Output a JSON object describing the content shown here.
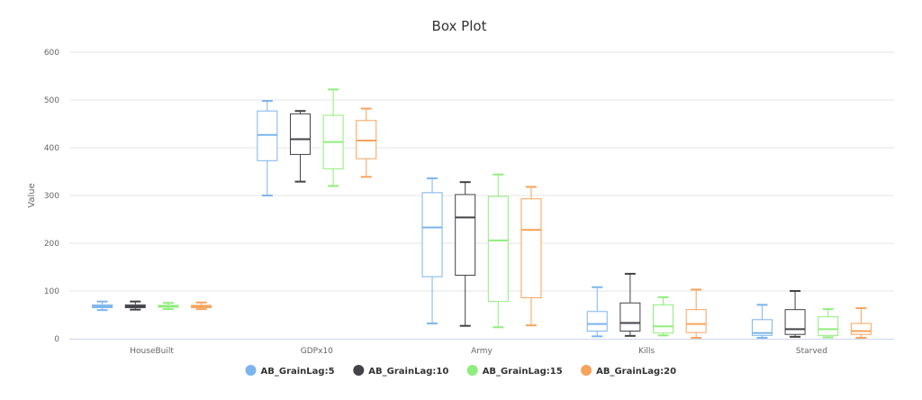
{
  "chart_data": {
    "type": "box",
    "title": "Box Plot",
    "ylabel": "Value",
    "xlabel": "",
    "ylim": [
      0,
      600
    ],
    "y_ticks": [
      0,
      100,
      200,
      300,
      400,
      500,
      600
    ],
    "grid": true,
    "legend_position": "bottom",
    "categories": [
      "HouseBuilt",
      "GDPx10",
      "Army",
      "Kills",
      "Starved"
    ],
    "series": [
      {
        "name": "AB_GrainLag:5",
        "color": "#7cb5ec",
        "boxes": [
          {
            "min": 60,
            "q1": 65,
            "median": 68,
            "q3": 71,
            "max": 78
          },
          {
            "min": 300,
            "q1": 373,
            "median": 427,
            "q3": 477,
            "max": 498
          },
          {
            "min": 32,
            "q1": 130,
            "median": 233,
            "q3": 306,
            "max": 336
          },
          {
            "min": 5,
            "q1": 16,
            "median": 31,
            "q3": 57,
            "max": 108
          },
          {
            "min": 2,
            "q1": 7,
            "median": 12,
            "q3": 40,
            "max": 71
          }
        ]
      },
      {
        "name": "AB_GrainLag:10",
        "color": "#434348",
        "boxes": [
          {
            "min": 61,
            "q1": 65,
            "median": 68,
            "q3": 71,
            "max": 78
          },
          {
            "min": 329,
            "q1": 386,
            "median": 418,
            "q3": 471,
            "max": 477
          },
          {
            "min": 27,
            "q1": 133,
            "median": 254,
            "q3": 302,
            "max": 328
          },
          {
            "min": 6,
            "q1": 16,
            "median": 33,
            "q3": 75,
            "max": 136
          },
          {
            "min": 4,
            "q1": 9,
            "median": 20,
            "q3": 61,
            "max": 100
          }
        ]
      },
      {
        "name": "AB_GrainLag:15",
        "color": "#90ed7d",
        "boxes": [
          {
            "min": 62,
            "q1": 66,
            "median": 68,
            "q3": 70,
            "max": 75
          },
          {
            "min": 320,
            "q1": 356,
            "median": 412,
            "q3": 468,
            "max": 522
          },
          {
            "min": 24,
            "q1": 78,
            "median": 206,
            "q3": 298,
            "max": 344
          },
          {
            "min": 7,
            "q1": 12,
            "median": 26,
            "q3": 71,
            "max": 87
          },
          {
            "min": 3,
            "q1": 7,
            "median": 20,
            "q3": 46,
            "max": 62
          }
        ]
      },
      {
        "name": "AB_GrainLag:20",
        "color": "#f7a35c",
        "boxes": [
          {
            "min": 62,
            "q1": 65,
            "median": 68,
            "q3": 70,
            "max": 76
          },
          {
            "min": 339,
            "q1": 377,
            "median": 415,
            "q3": 457,
            "max": 482
          },
          {
            "min": 28,
            "q1": 86,
            "median": 228,
            "q3": 293,
            "max": 318
          },
          {
            "min": 2,
            "q1": 13,
            "median": 31,
            "q3": 61,
            "max": 103
          },
          {
            "min": 2,
            "q1": 9,
            "median": 16,
            "q3": 32,
            "max": 64
          }
        ]
      }
    ]
  }
}
